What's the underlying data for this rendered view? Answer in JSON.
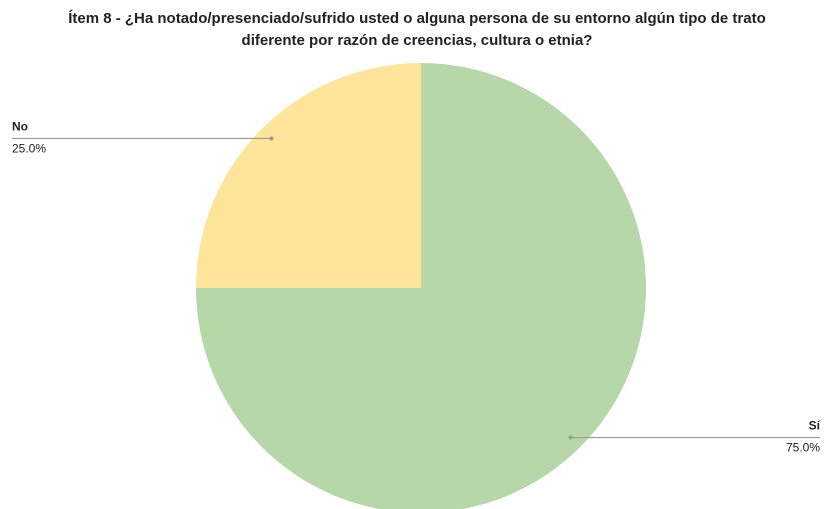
{
  "chart_data": {
    "type": "pie",
    "title": "Ítem 8 - ¿Ha notado/presenciado/sufrido usted o alguna persona de su entorno algún tipo de trato diferente por razón de creencias, cultura o etnia?",
    "categories": [
      "Sí",
      "No"
    ],
    "values": [
      75,
      25
    ],
    "value_labels": [
      "75.0%",
      "25.0%"
    ],
    "colors": [
      "#b6d7a8",
      "#ffe599"
    ]
  }
}
